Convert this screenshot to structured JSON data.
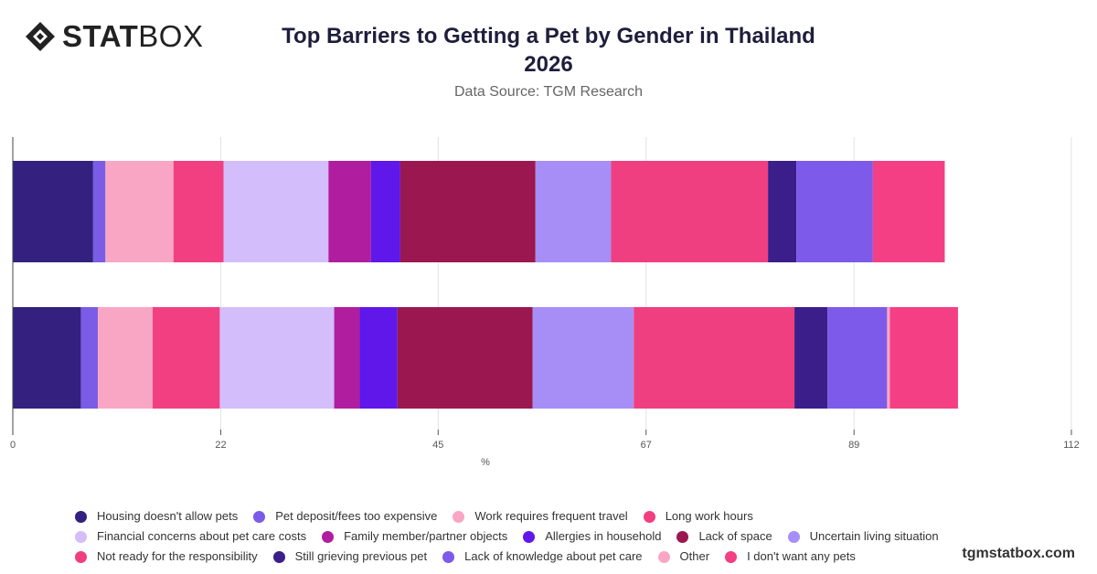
{
  "header": {
    "logo_bold": "STAT",
    "logo_light": "BOX",
    "title_line1": "Top Barriers to Getting a Pet by Gender in Thailand",
    "title_line2": "2026",
    "subtitle": "Data Source: TGM Research"
  },
  "footer": {
    "site": "tgmstatbox.com"
  },
  "chart_data": {
    "type": "bar",
    "orientation": "horizontal",
    "stacked": true,
    "categories": [
      "",
      ""
    ],
    "xlabel": "%",
    "ylabel": "",
    "xlim": [
      0,
      112
    ],
    "xticks": [
      0,
      22,
      45,
      67,
      89,
      112
    ],
    "grid": "vertical",
    "legend_position": "bottom",
    "series": [
      {
        "name": "Housing doesn't allow pets",
        "color": "#33207f",
        "values": [
          8.5,
          7.2
        ]
      },
      {
        "name": "Pet deposit/fees too expensive",
        "color": "#7a5ce6",
        "values": [
          1.3,
          1.8
        ]
      },
      {
        "name": "Work requires frequent travel",
        "color": "#f9a6c4",
        "values": [
          7.2,
          5.8
        ]
      },
      {
        "name": "Long work hours",
        "color": "#f23f81",
        "values": [
          5.3,
          7.1
        ]
      },
      {
        "name": "Financial concerns about pet care costs",
        "color": "#d3bdfb",
        "values": [
          11.1,
          12.1
        ]
      },
      {
        "name": "Family member/partner objects",
        "color": "#b01d9f",
        "values": [
          4.5,
          2.7
        ]
      },
      {
        "name": "Allergies in household",
        "color": "#5f17ea",
        "values": [
          3.1,
          4.0
        ]
      },
      {
        "name": "Lack of space",
        "color": "#9b174f",
        "values": [
          14.3,
          14.3
        ]
      },
      {
        "name": "Uncertain living situation",
        "color": "#a78ef7",
        "values": [
          8.0,
          10.7
        ]
      },
      {
        "name": "Not ready for the responsibility",
        "color": "#f03f81",
        "values": [
          16.6,
          17.0
        ]
      },
      {
        "name": "Still grieving previous pet",
        "color": "#3b1e8a",
        "values": [
          3.0,
          3.5
        ]
      },
      {
        "name": "Lack of knowledge about pet care",
        "color": "#7d5ae9",
        "values": [
          8.1,
          6.3
        ]
      },
      {
        "name": "Other",
        "color": "#f9a6c4",
        "values": [
          0.0,
          0.3
        ]
      },
      {
        "name": "I don't want any pets",
        "color": "#f43f84",
        "values": [
          7.6,
          7.2
        ]
      }
    ]
  }
}
